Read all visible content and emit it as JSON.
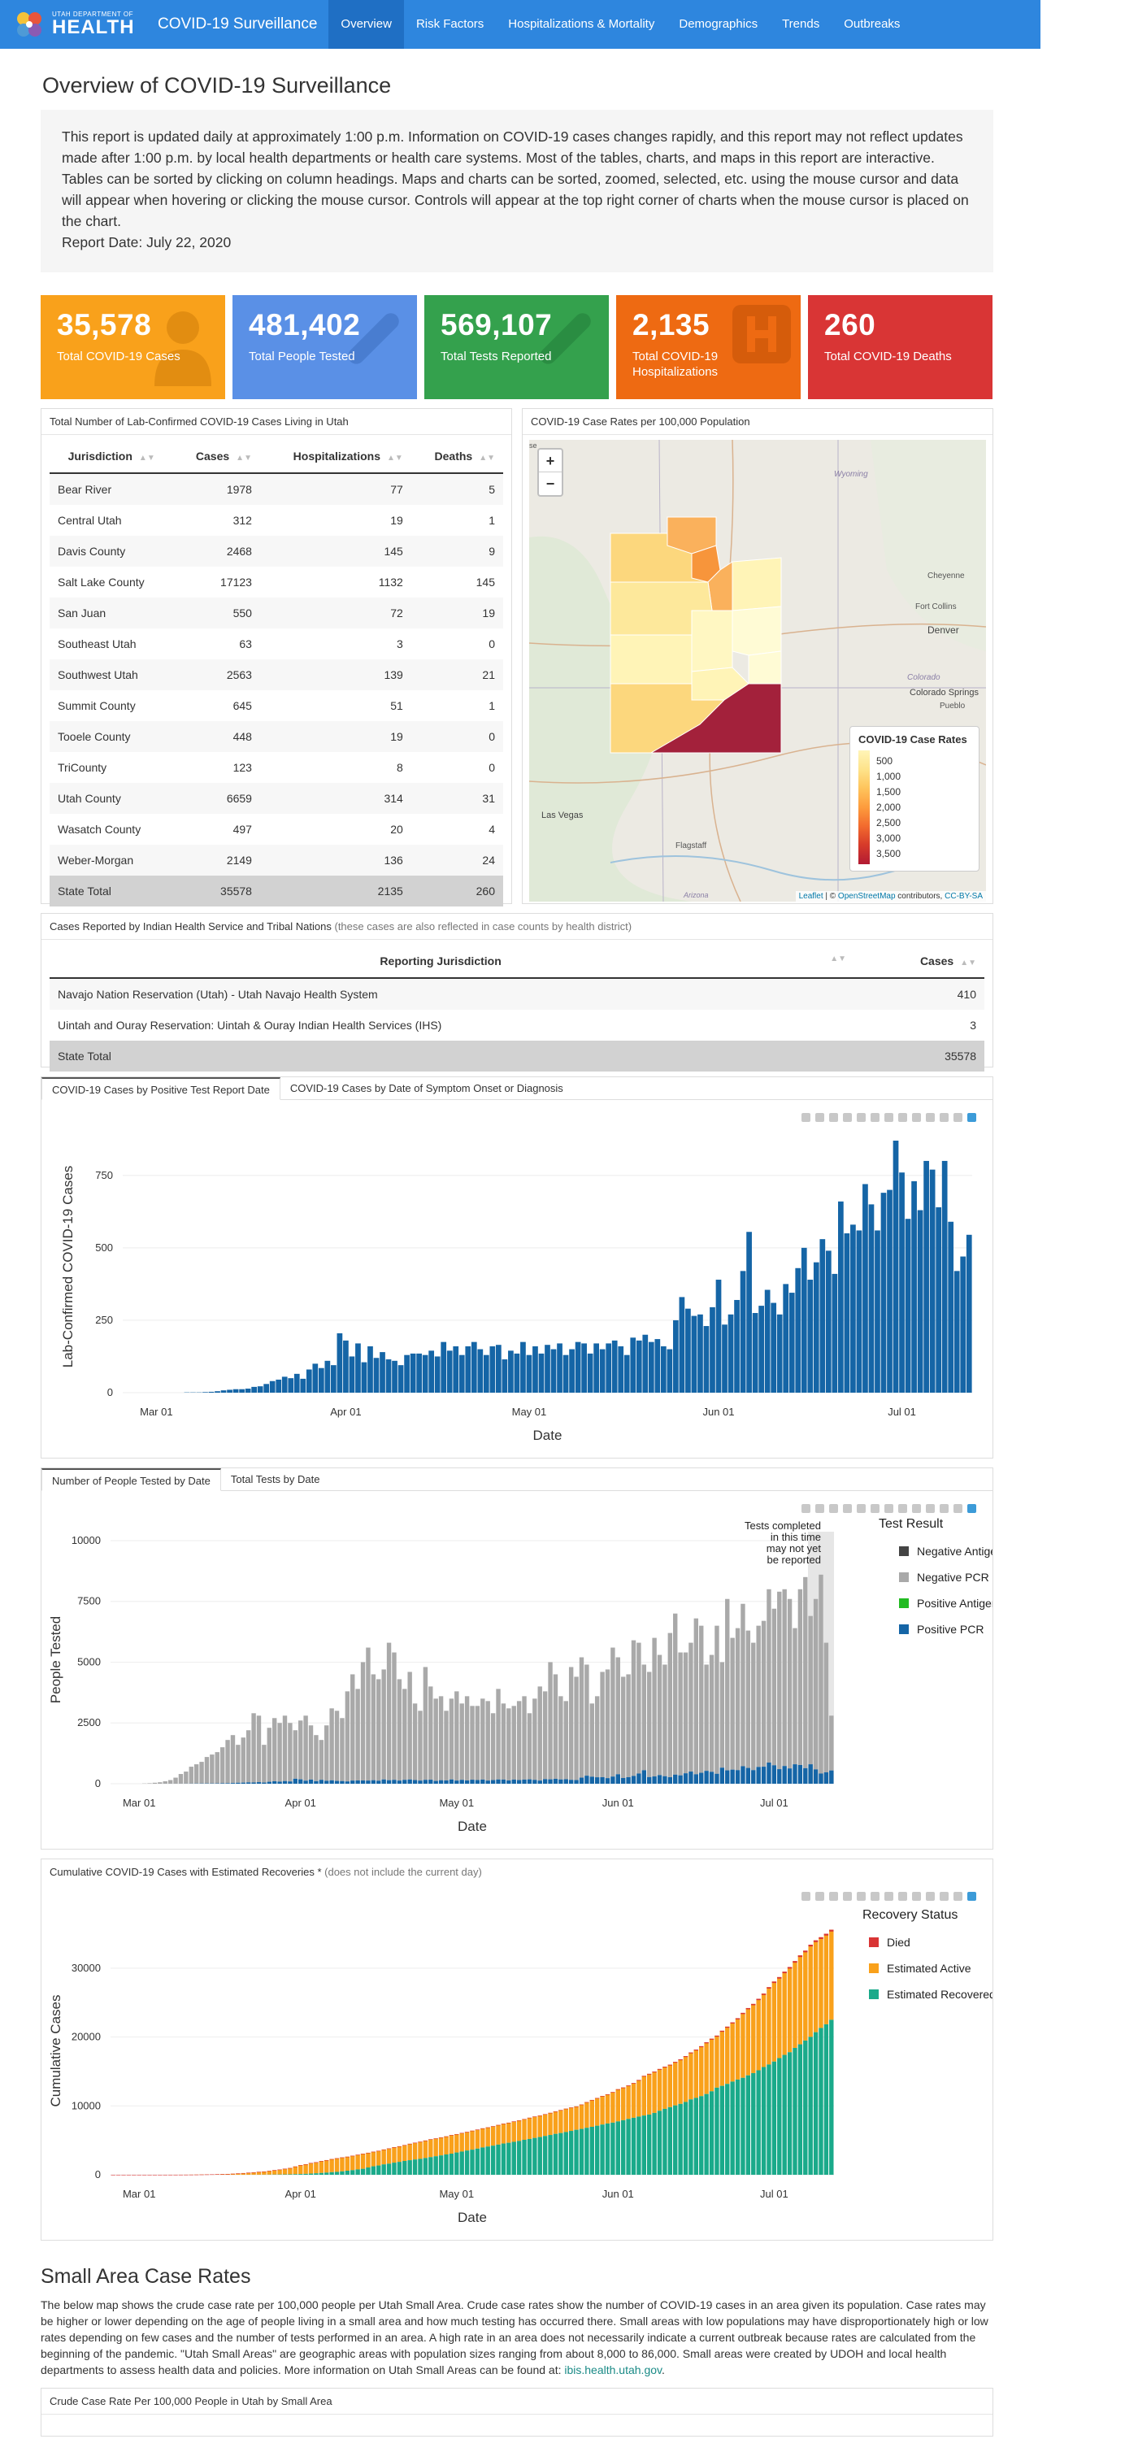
{
  "header": {
    "logo_small": "UTAH DEPARTMENT OF",
    "logo_big": "HEALTH",
    "brand": "COVID-19 Surveillance",
    "nav": [
      "Overview",
      "Risk Factors",
      "Hospitalizations & Mortality",
      "Demographics",
      "Trends",
      "Outbreaks"
    ],
    "active_nav": "Overview"
  },
  "overview": {
    "title": "Overview of COVID-19 Surveillance",
    "intro": "This report is updated daily at approximately 1:00 p.m. Information on COVID-19 cases changes rapidly, and this report may not reflect updates made after 1:00 p.m. by local health departments or health care systems. Most of the tables, charts, and maps in this report are interactive. Tables can be sorted by clicking on column headings. Maps and charts can be sorted, zoomed, selected, etc. using the mouse cursor and data will appear when hovering or clicking the mouse cursor. Controls will appear at the top right corner of charts when the mouse cursor is placed on the chart.",
    "report_date": "Report Date: July 22, 2020"
  },
  "cards": [
    {
      "value": "35,578",
      "label": "Total COVID-19 Cases",
      "color": "#f9a11b",
      "icon": "person-icon"
    },
    {
      "value": "481,402",
      "label": "Total People Tested",
      "color": "#5a90e6",
      "icon": "test-tube-icon"
    },
    {
      "value": "569,107",
      "label": "Total Tests Reported",
      "color": "#34a14d",
      "icon": "test-tube-icon"
    },
    {
      "value": "2,135",
      "label": "Total COVID-19 Hospitalizations",
      "color": "#ee6a12",
      "icon": "hospital-icon"
    },
    {
      "value": "260",
      "label": "Total COVID-19 Deaths",
      "color": "#d93535",
      "icon": ""
    }
  ],
  "cases_table": {
    "title": "Total Number of Lab-Confirmed COVID-19 Cases Living in Utah",
    "headers": [
      "Jurisdiction",
      "Cases",
      "Hospitalizations",
      "Deaths"
    ],
    "rows": [
      [
        "Bear River",
        "1978",
        "77",
        "5"
      ],
      [
        "Central Utah",
        "312",
        "19",
        "1"
      ],
      [
        "Davis County",
        "2468",
        "145",
        "9"
      ],
      [
        "Salt Lake County",
        "17123",
        "1132",
        "145"
      ],
      [
        "San Juan",
        "550",
        "72",
        "19"
      ],
      [
        "Southeast Utah",
        "63",
        "3",
        "0"
      ],
      [
        "Southwest Utah",
        "2563",
        "139",
        "21"
      ],
      [
        "Summit County",
        "645",
        "51",
        "1"
      ],
      [
        "Tooele County",
        "448",
        "19",
        "0"
      ],
      [
        "TriCounty",
        "123",
        "8",
        "0"
      ],
      [
        "Utah County",
        "6659",
        "314",
        "31"
      ],
      [
        "Wasatch County",
        "497",
        "20",
        "4"
      ],
      [
        "Weber-Morgan",
        "2149",
        "136",
        "24"
      ]
    ],
    "total": [
      "State Total",
      "35578",
      "2135",
      "260"
    ]
  },
  "map": {
    "title": "COVID-19 Case Rates per 100,000 Population",
    "zoom_in": "+",
    "zoom_out": "−",
    "legend_title": "COVID-19 Case Rates",
    "legend_items": [
      "500",
      "1,000",
      "1,500",
      "2,000",
      "2,500",
      "3,000",
      "3,500"
    ],
    "legend_colors": [
      "#fff5b8",
      "#fee38a",
      "#fec45c",
      "#fd9c3d",
      "#f26a2e",
      "#d63a2a",
      "#b21a33"
    ],
    "places": [
      "Wyoming",
      "Cheyenne",
      "Fort Collins",
      "Denver",
      "Colorado",
      "Colorado Springs",
      "Pueblo",
      "Las Vegas",
      "Flagstaff",
      "Arizona",
      "se"
    ],
    "attribution_leaflet": "Leaflet",
    "attribution_sep": " | © ",
    "attribution_osm": "OpenStreetMap",
    "attribution_contrib": " contributors, ",
    "attribution_cc": "CC-BY-SA"
  },
  "ihs_table": {
    "title": "Cases Reported by Indian Health Service and Tribal Nations",
    "title_note": "(these cases are also reflected in case counts by health district)",
    "headers": [
      "Reporting Jurisdiction",
      "Cases"
    ],
    "rows": [
      [
        "Navajo Nation Reservation (Utah) - Utah Navajo Health System",
        "410"
      ],
      [
        "Uintah and Ouray Reservation: Uintah & Ouray Indian Health Services (IHS)",
        "3"
      ]
    ],
    "total": [
      "State Total",
      "35578"
    ]
  },
  "cases_chart": {
    "tabs": [
      "COVID-19 Cases by Positive Test Report Date",
      "COVID-19 Cases by Date of Symptom Onset or Diagnosis"
    ],
    "chart_data": {
      "type": "bar",
      "xlabel": "Date",
      "ylabel": "Lab-Confirmed COVID-19 Cases",
      "ylim": [
        0,
        870
      ],
      "yticks": [
        0,
        250,
        500,
        750
      ],
      "xticks": [
        "Mar 01",
        "Apr 01",
        "May 01",
        "Jun 01",
        "Jul 01"
      ],
      "x_start": "2020-02-25",
      "x_end": "2020-07-21",
      "color": "#1565a6",
      "values": [
        0,
        0,
        0,
        0,
        0,
        0,
        0,
        0,
        0,
        0,
        1,
        1,
        1,
        2,
        3,
        5,
        8,
        10,
        12,
        12,
        14,
        20,
        22,
        30,
        40,
        45,
        55,
        50,
        65,
        48,
        80,
        100,
        85,
        110,
        95,
        205,
        180,
        125,
        170,
        105,
        160,
        120,
        140,
        115,
        110,
        95,
        130,
        135,
        135,
        130,
        145,
        125,
        175,
        145,
        160,
        130,
        160,
        175,
        150,
        130,
        160,
        165,
        115,
        145,
        135,
        175,
        130,
        160,
        135,
        165,
        150,
        170,
        130,
        150,
        175,
        170,
        135,
        170,
        150,
        170,
        180,
        160,
        130,
        190,
        180,
        200,
        175,
        185,
        160,
        150,
        250,
        330,
        290,
        265,
        270,
        230,
        295,
        390,
        235,
        270,
        320,
        420,
        555,
        275,
        300,
        355,
        310,
        270,
        375,
        345,
        430,
        500,
        390,
        450,
        530,
        490,
        410,
        660,
        550,
        580,
        560,
        720,
        650,
        560,
        690,
        700,
        870,
        760,
        600,
        730,
        630,
        800,
        770,
        640,
        800,
        590,
        420,
        470,
        545
      ]
    }
  },
  "tested_chart": {
    "tabs": [
      "Number of People Tested by Date",
      "Total Tests by Date"
    ],
    "annotation": [
      "Tests completed",
      "in this time",
      "may not yet",
      "be reported"
    ],
    "legend_title": "Test Result",
    "chart_data": {
      "type": "bar",
      "xlabel": "Date",
      "ylabel": "People Tested",
      "ylim": [
        0,
        10200
      ],
      "yticks": [
        0,
        2500,
        5000,
        7500,
        10000
      ],
      "xticks": [
        "Mar 01",
        "Apr 01",
        "May 01",
        "Jun 01",
        "Jul 01"
      ],
      "x_start": "2020-02-25",
      "x_end": "2020-07-21",
      "series": [
        {
          "name": "Negative Antigen",
          "color": "#444444"
        },
        {
          "name": "Negative PCR",
          "color": "#a9a9a9"
        },
        {
          "name": "Positive Antigen",
          "color": "#22bb22"
        },
        {
          "name": "Positive PCR",
          "color": "#1565a6"
        }
      ],
      "totals": [
        0,
        0,
        0,
        0,
        0,
        0,
        10,
        20,
        40,
        60,
        100,
        150,
        250,
        400,
        500,
        700,
        800,
        900,
        1100,
        1200,
        1300,
        1500,
        1800,
        2000,
        1600,
        1900,
        2200,
        2900,
        2800,
        1600,
        2300,
        2700,
        2500,
        2800,
        2500,
        2200,
        2600,
        2800,
        2400,
        2000,
        1800,
        2400,
        3100,
        3000,
        2700,
        3800,
        4500,
        3900,
        5000,
        5600,
        4500,
        4300,
        4700,
        5800,
        5400,
        4300,
        3900,
        4600,
        3300,
        3000,
        4800,
        4000,
        3500,
        3600,
        3000,
        3500,
        3800,
        3300,
        3600,
        3200,
        3200,
        3500,
        3400,
        2900,
        3900,
        3300,
        3100,
        3200,
        3400,
        3600,
        2900,
        3500,
        4000,
        3800,
        5000,
        4500,
        3600,
        3400,
        4800,
        4400,
        5200,
        4900,
        3300,
        3600,
        4600,
        4700,
        5600,
        5200,
        4400,
        4500,
        5900,
        5800,
        4900,
        4600,
        6000,
        5300,
        4900,
        6200,
        7000,
        5400,
        5400,
        5800,
        6800,
        6500,
        4900,
        5300,
        6500,
        5000,
        7600,
        6000,
        6400,
        7400,
        6300,
        5800,
        6500,
        6700,
        8000,
        7200,
        7900,
        8000,
        7600,
        6400,
        8000,
        8500,
        6900,
        7600,
        8600,
        5800,
        2800
      ],
      "positive": [
        0,
        0,
        0,
        0,
        0,
        0,
        0,
        0,
        0,
        0,
        1,
        1,
        1,
        2,
        3,
        5,
        8,
        10,
        12,
        12,
        14,
        20,
        22,
        30,
        40,
        45,
        55,
        50,
        65,
        48,
        80,
        100,
        85,
        110,
        95,
        205,
        180,
        125,
        170,
        105,
        160,
        120,
        140,
        115,
        110,
        95,
        130,
        135,
        135,
        130,
        145,
        125,
        175,
        145,
        160,
        130,
        160,
        175,
        150,
        130,
        160,
        165,
        115,
        145,
        135,
        175,
        130,
        160,
        135,
        165,
        150,
        170,
        130,
        150,
        175,
        170,
        135,
        170,
        150,
        170,
        180,
        160,
        130,
        190,
        180,
        200,
        175,
        185,
        160,
        150,
        250,
        330,
        290,
        265,
        270,
        230,
        295,
        390,
        235,
        270,
        320,
        420,
        555,
        275,
        300,
        355,
        310,
        270,
        375,
        345,
        430,
        500,
        390,
        450,
        530,
        490,
        410,
        660,
        550,
        580,
        560,
        720,
        650,
        560,
        690,
        700,
        870,
        760,
        600,
        730,
        630,
        800,
        770,
        640,
        800,
        590,
        420,
        470,
        545
      ]
    }
  },
  "cumulative_chart": {
    "title": "Cumulative COVID-19 Cases with Estimated Recoveries *",
    "title_note": "(does not include the current day)",
    "legend_title": "Recovery Status",
    "chart_data": {
      "type": "bar",
      "xlabel": "Date",
      "ylabel": "Cumulative Cases",
      "ylim": [
        0,
        36000
      ],
      "yticks": [
        0,
        10000,
        20000,
        30000
      ],
      "xticks": [
        "Mar 01",
        "Apr 01",
        "May 01",
        "Jun 01",
        "Jul 01"
      ],
      "x_start": "2020-02-25",
      "x_end": "2020-07-21",
      "series": [
        {
          "name": "Died",
          "color": "#d93535"
        },
        {
          "name": "Estimated Active",
          "color": "#f9a11b"
        },
        {
          "name": "Estimated Recovered *",
          "color": "#1aaa8a"
        }
      ],
      "final_total": 35578,
      "final_recovered": 22500,
      "final_died": 260
    }
  },
  "small_area": {
    "title": "Small Area Case Rates",
    "text": "The below map shows the crude case rate per 100,000 people per Utah Small Area. Crude case rates show the number of COVID-19 cases in an area given its population. Case rates may be higher or lower depending on the age of people living in a small area and how much testing has occurred there. Small areas with low populations may have disproportionately high or low rates depending on few cases and the number of tests performed in an area. A high rate in an area does not necessarily indicate a current outbreak because rates are calculated from the beginning of the pandemic. \"Utah Small Areas\" are geographic areas with population sizes ranging from about 8,000 to 86,000. Small areas were created by UDOH and local health departments to assess health data and policies. More information on Utah Small Areas can be found at: ",
    "link": "ibis.health.utah.gov",
    "link_after": ".",
    "panel_title": "Crude Case Rate Per 100,000 People in Utah by Small Area"
  }
}
